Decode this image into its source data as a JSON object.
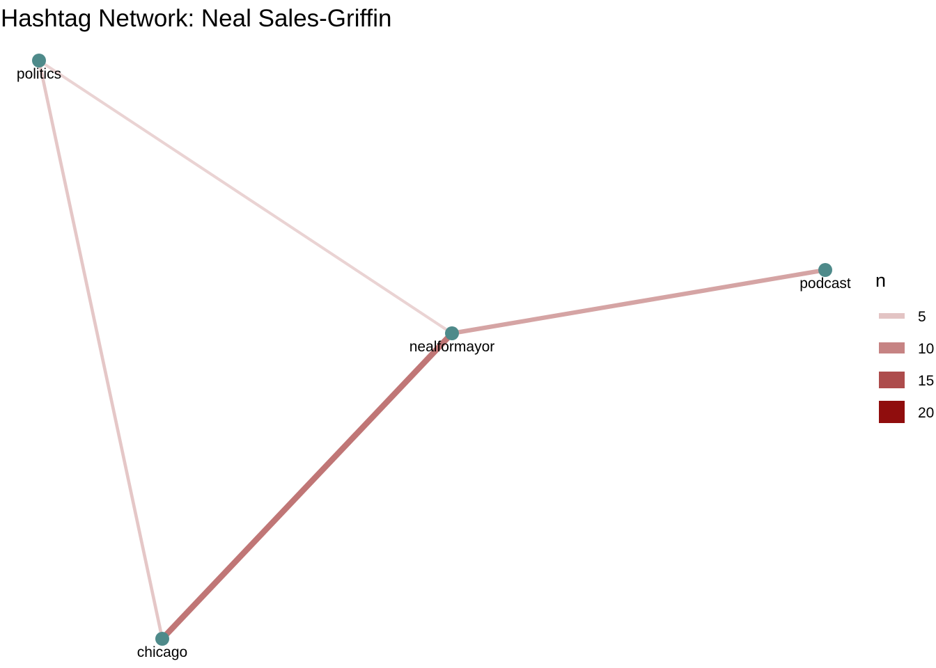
{
  "title": "Hashtag Network: Neal Sales-Griffin",
  "network": {
    "node_color": "#4e8a8a",
    "nodes": [
      {
        "id": "politics",
        "label": "politics"
      },
      {
        "id": "podcast",
        "label": "podcast"
      },
      {
        "id": "nealformayor",
        "label": "nealformayor"
      },
      {
        "id": "chicago",
        "label": "chicago"
      }
    ],
    "edges": [
      {
        "from": "politics",
        "to": "nealformayor",
        "n": 3
      },
      {
        "from": "politics",
        "to": "chicago",
        "n": 4
      },
      {
        "from": "nealformayor",
        "to": "podcast",
        "n": 7
      },
      {
        "from": "nealformayor",
        "to": "chicago",
        "n": 11
      }
    ]
  },
  "legend": {
    "title": "n",
    "entries": [
      {
        "label": "5",
        "value": 5,
        "color": "#e3c4c4"
      },
      {
        "label": "10",
        "value": 10,
        "color": "#c68383"
      },
      {
        "label": "15",
        "value": 15,
        "color": "#ad4c4c"
      },
      {
        "label": "20",
        "value": 20,
        "color": "#900d0d"
      }
    ]
  }
}
